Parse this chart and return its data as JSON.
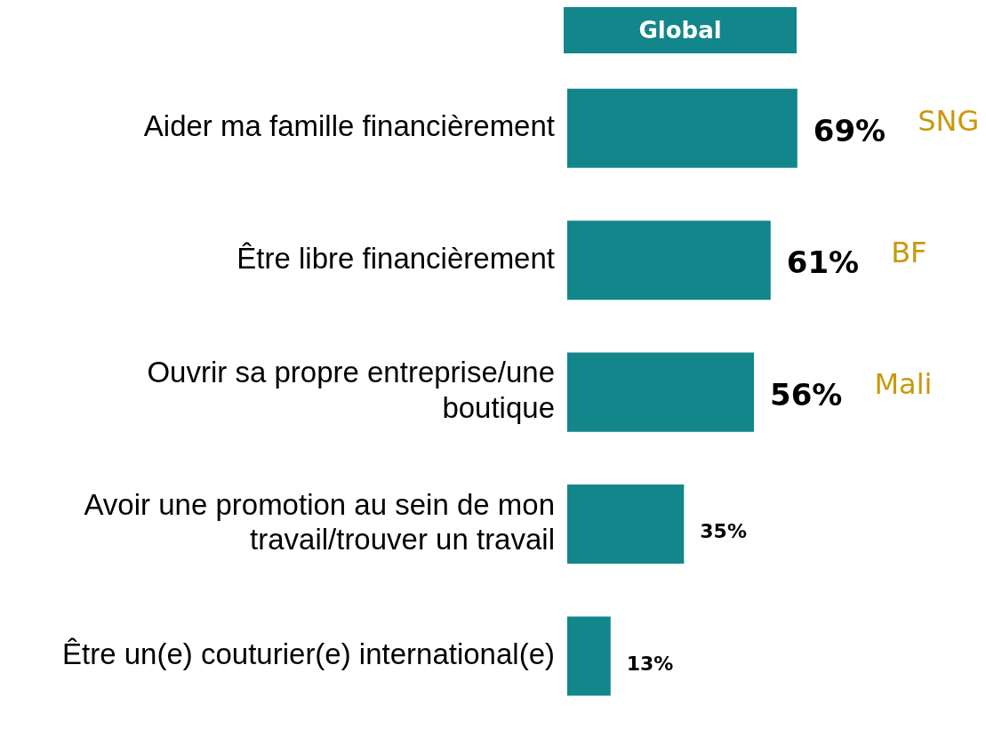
{
  "chart_data": {
    "type": "bar",
    "orientation": "horizontal",
    "title": "Global",
    "categories": [
      "Aider ma famille financièrement",
      "Être libre financièrement",
      "Ouvrir sa propre entreprise/une boutique",
      "Avoir une promotion au sein de mon travail/trouver un travail",
      "Être un(e) couturier(e) international(e)"
    ],
    "values": [
      69,
      61,
      56,
      35,
      13
    ],
    "value_labels": [
      "69%",
      "61%",
      "56%",
      "35%",
      "13%"
    ],
    "color": "#12868a",
    "grid": false,
    "legend": false,
    "annotations": [
      "SNG",
      "BF",
      "Mali"
    ]
  }
}
